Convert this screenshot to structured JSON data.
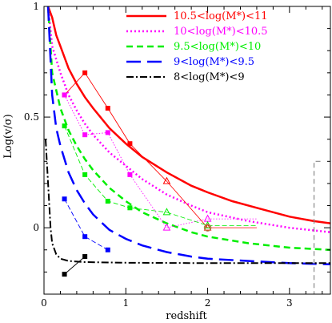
{
  "chart_data": {
    "type": "line",
    "xlabel": "redshift",
    "ylabel": "Log(v/σ)",
    "xlim": [
      0,
      3.5
    ],
    "ylim": [
      -0.3,
      1.0
    ],
    "x_ticks": [
      0,
      1,
      2,
      3
    ],
    "x_tick_labels": [
      "0",
      "1",
      "2",
      "3"
    ],
    "y_ticks": [
      0,
      0.5,
      1
    ],
    "y_tick_labels": [
      "0",
      "0.5",
      "1"
    ],
    "legend": "top-right",
    "series": [
      {
        "name": "10.5<log(M*)<11",
        "color": "#ff0000",
        "dash": "solid",
        "width": 2.5,
        "curve": {
          "x": [
            0.05,
            0.1,
            0.15,
            0.2,
            0.3,
            0.4,
            0.5,
            0.6,
            0.8,
            1.0,
            1.2,
            1.5,
            1.8,
            2.0,
            2.3,
            2.6,
            3.0,
            3.3,
            3.5
          ],
          "y": [
            1.0,
            0.95,
            0.87,
            0.82,
            0.72,
            0.65,
            0.59,
            0.54,
            0.45,
            0.38,
            0.32,
            0.25,
            0.19,
            0.16,
            0.12,
            0.09,
            0.05,
            0.03,
            0.02
          ]
        },
        "points": {
          "x": [
            0.25,
            0.5,
            0.78,
            1.05
          ],
          "y": [
            0.6,
            0.7,
            0.54,
            0.38
          ],
          "marker": "filled-square"
        },
        "extra_points": {
          "x": [
            1.5,
            2.0
          ],
          "y": [
            0.21,
            0.0
          ],
          "marker": "open-triangle"
        },
        "extra_links": [
          [
            1.05,
            0.38,
            1.5,
            0.21
          ],
          [
            1.5,
            0.21,
            2.0,
            0.0
          ],
          [
            2.0,
            0.0,
            2.6,
            0.0
          ]
        ]
      },
      {
        "name": "10<log(M*)<10.5",
        "color": "#ff00ff",
        "dash": "dotted",
        "width": 2.5,
        "curve": {
          "x": [
            0.05,
            0.1,
            0.2,
            0.3,
            0.4,
            0.5,
            0.6,
            0.8,
            1.0,
            1.2,
            1.5,
            1.8,
            2.0,
            2.5,
            3.0,
            3.5
          ],
          "y": [
            1.0,
            0.82,
            0.7,
            0.6,
            0.53,
            0.47,
            0.42,
            0.34,
            0.28,
            0.22,
            0.15,
            0.1,
            0.07,
            0.03,
            0.0,
            -0.02
          ]
        },
        "points": {
          "x": [
            0.25,
            0.5,
            0.78,
            1.05
          ],
          "y": [
            0.6,
            0.42,
            0.43,
            0.24
          ],
          "marker": "filled-square"
        },
        "extra_points": {
          "x": [
            1.5,
            2.0
          ],
          "y": [
            0.0,
            0.04
          ],
          "marker": "open-triangle"
        },
        "extra_links": [
          [
            1.05,
            0.24,
            1.5,
            0.0
          ],
          [
            1.5,
            0.0,
            2.0,
            0.04
          ],
          [
            2.0,
            0.04,
            2.6,
            0.04
          ]
        ]
      },
      {
        "name": "9.5<log(M*)<10",
        "color": "#00ee00",
        "dash": "dashed",
        "width": 2.5,
        "curve": {
          "x": [
            0.05,
            0.1,
            0.2,
            0.3,
            0.4,
            0.5,
            0.6,
            0.8,
            1.0,
            1.2,
            1.5,
            1.8,
            2.0,
            2.5,
            3.0,
            3.5
          ],
          "y": [
            1.0,
            0.7,
            0.54,
            0.44,
            0.37,
            0.31,
            0.26,
            0.18,
            0.12,
            0.07,
            0.02,
            -0.02,
            -0.04,
            -0.07,
            -0.09,
            -0.1
          ]
        },
        "points": {
          "x": [
            0.25,
            0.5,
            0.78,
            1.05
          ],
          "y": [
            0.46,
            0.24,
            0.12,
            0.09
          ],
          "marker": "filled-square"
        },
        "extra_points": {
          "x": [
            1.5,
            2.0
          ],
          "y": [
            0.07,
            0.01
          ],
          "marker": "open-triangle"
        },
        "extra_links": [
          [
            1.05,
            0.09,
            1.5,
            0.07
          ],
          [
            1.5,
            0.07,
            2.0,
            0.01
          ],
          [
            2.0,
            0.01,
            2.6,
            0.01
          ]
        ]
      },
      {
        "name": "9<log(M*)<9.5",
        "color": "#0000ff",
        "dash": "long-dashed",
        "width": 2.5,
        "curve": {
          "x": [
            0.05,
            0.1,
            0.15,
            0.2,
            0.3,
            0.4,
            0.5,
            0.6,
            0.8,
            1.0,
            1.2,
            1.5,
            1.8,
            2.0,
            2.5,
            3.0,
            3.5
          ],
          "y": [
            1.0,
            0.6,
            0.45,
            0.37,
            0.25,
            0.17,
            0.11,
            0.06,
            -0.01,
            -0.05,
            -0.08,
            -0.11,
            -0.13,
            -0.14,
            -0.15,
            -0.16,
            -0.165
          ]
        },
        "points": {
          "x": [
            0.25,
            0.5,
            0.78
          ],
          "y": [
            0.13,
            -0.04,
            -0.1
          ],
          "marker": "filled-square"
        }
      },
      {
        "name": "8<log(M*)<9",
        "color": "#000000",
        "dash": "dash-dot",
        "width": 2.0,
        "curve": {
          "x": [
            0.02,
            0.05,
            0.08,
            0.1,
            0.15,
            0.2,
            0.3,
            0.5,
            1.0,
            2.0,
            3.0,
            3.5
          ],
          "y": [
            0.4,
            0.2,
            0.0,
            -0.07,
            -0.12,
            -0.14,
            -0.15,
            -0.155,
            -0.158,
            -0.16,
            -0.16,
            -0.16
          ]
        },
        "points": {
          "x": [
            0.25,
            0.5
          ],
          "y": [
            -0.21,
            -0.13
          ],
          "marker": "filled-square"
        }
      }
    ],
    "highlight_point": {
      "x": 2.0,
      "y": 0.0,
      "marker": "open-circle",
      "color": "#b07a4a"
    },
    "bracket": {
      "x": 3.3,
      "y_top": 0.3,
      "y_bottom": -0.3,
      "color": "#888888",
      "dash": "dashed"
    }
  }
}
